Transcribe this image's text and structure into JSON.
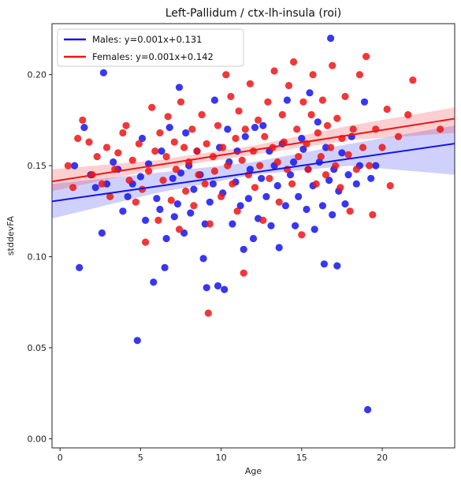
{
  "chart_data": {
    "type": "scatter",
    "title": "Left-Pallidum / ctx-lh-insula (roi)",
    "xlabel": "Age",
    "ylabel": "stddevFA",
    "xlim": [
      -0.5,
      24.5
    ],
    "ylim": [
      -0.005,
      0.228
    ],
    "xticks": [
      0,
      5,
      10,
      15,
      20
    ],
    "yticks": [
      0.0,
      0.05,
      0.1,
      0.15,
      0.2
    ],
    "ytick_labels": [
      "0.00",
      "0.05",
      "0.10",
      "0.15",
      "0.20"
    ],
    "grid": false,
    "legend_position": "top-left",
    "series": [
      {
        "name": "Males: y=0.001x+0.131",
        "color": "#1414ee",
        "regression": {
          "slope": 0.00127,
          "intercept": 0.131,
          "x_range": [
            -0.5,
            24.5
          ]
        },
        "ci_band": {
          "x": [
            -0.5,
            6,
            12,
            18,
            24.5
          ],
          "lower": [
            0.121,
            0.135,
            0.145,
            0.15,
            0.145
          ],
          "upper": [
            0.14,
            0.146,
            0.152,
            0.162,
            0.172
          ]
        },
        "points": [
          [
            0.9,
            0.15
          ],
          [
            1.2,
            0.094
          ],
          [
            1.5,
            0.171
          ],
          [
            1.9,
            0.145
          ],
          [
            2.2,
            0.138
          ],
          [
            2.6,
            0.113
          ],
          [
            2.7,
            0.201
          ],
          [
            2.9,
            0.14
          ],
          [
            3.3,
            0.152
          ],
          [
            3.6,
            0.148
          ],
          [
            3.9,
            0.125
          ],
          [
            4.2,
            0.133
          ],
          [
            4.5,
            0.14
          ],
          [
            4.8,
            0.054
          ],
          [
            5.0,
            0.144
          ],
          [
            5.1,
            0.165
          ],
          [
            5.3,
            0.12
          ],
          [
            5.5,
            0.151
          ],
          [
            5.8,
            0.086
          ],
          [
            6.0,
            0.132
          ],
          [
            6.2,
            0.126
          ],
          [
            6.3,
            0.158
          ],
          [
            6.5,
            0.094
          ],
          [
            6.6,
            0.11
          ],
          [
            6.8,
            0.171
          ],
          [
            7.0,
            0.143
          ],
          [
            7.1,
            0.122
          ],
          [
            7.3,
            0.129
          ],
          [
            7.4,
            0.193
          ],
          [
            7.5,
            0.146
          ],
          [
            7.7,
            0.113
          ],
          [
            7.8,
            0.168
          ],
          [
            8.0,
            0.15
          ],
          [
            8.1,
            0.124
          ],
          [
            8.3,
            0.137
          ],
          [
            8.5,
            0.158
          ],
          [
            8.7,
            0.145
          ],
          [
            8.9,
            0.099
          ],
          [
            9.0,
            0.118
          ],
          [
            9.1,
            0.083
          ],
          [
            9.3,
            0.13
          ],
          [
            9.5,
            0.14
          ],
          [
            9.6,
            0.186
          ],
          [
            9.8,
            0.084
          ],
          [
            9.9,
            0.16
          ],
          [
            10.1,
            0.135
          ],
          [
            10.2,
            0.082
          ],
          [
            10.4,
            0.17
          ],
          [
            10.5,
            0.152
          ],
          [
            10.7,
            0.118
          ],
          [
            10.9,
            0.141
          ],
          [
            11.0,
            0.158
          ],
          [
            11.2,
            0.128
          ],
          [
            11.4,
            0.104
          ],
          [
            11.5,
            0.166
          ],
          [
            11.7,
            0.132
          ],
          [
            11.8,
            0.148
          ],
          [
            12.0,
            0.11
          ],
          [
            12.1,
            0.171
          ],
          [
            12.3,
            0.121
          ],
          [
            12.5,
            0.143
          ],
          [
            12.6,
            0.172
          ],
          [
            12.8,
            0.133
          ],
          [
            13.0,
            0.158
          ],
          [
            13.1,
            0.117
          ],
          [
            13.3,
            0.15
          ],
          [
            13.5,
            0.139
          ],
          [
            13.6,
            0.105
          ],
          [
            13.8,
            0.162
          ],
          [
            14.0,
            0.128
          ],
          [
            14.1,
            0.186
          ],
          [
            14.3,
            0.145
          ],
          [
            14.5,
            0.152
          ],
          [
            14.6,
            0.117
          ],
          [
            14.8,
            0.133
          ],
          [
            15.0,
            0.165
          ],
          [
            15.1,
            0.159
          ],
          [
            15.3,
            0.126
          ],
          [
            15.4,
            0.148
          ],
          [
            15.5,
            0.19
          ],
          [
            15.7,
            0.139
          ],
          [
            15.8,
            0.115
          ],
          [
            16.0,
            0.174
          ],
          [
            16.1,
            0.152
          ],
          [
            16.3,
            0.128
          ],
          [
            16.4,
            0.096
          ],
          [
            16.5,
            0.16
          ],
          [
            16.7,
            0.142
          ],
          [
            16.8,
            0.22
          ],
          [
            16.9,
            0.123
          ],
          [
            17.0,
            0.148
          ],
          [
            17.2,
            0.095
          ],
          [
            17.3,
            0.136
          ],
          [
            17.5,
            0.157
          ],
          [
            17.7,
            0.129
          ],
          [
            17.9,
            0.145
          ],
          [
            18.1,
            0.166
          ],
          [
            18.4,
            0.14
          ],
          [
            18.6,
            0.15
          ],
          [
            18.9,
            0.185
          ],
          [
            19.1,
            0.016
          ],
          [
            19.3,
            0.143
          ],
          [
            19.6,
            0.15
          ]
        ]
      },
      {
        "name": "Females: y=0.001x+0.142",
        "color": "#ee1414",
        "regression": {
          "slope": 0.00138,
          "intercept": 0.142,
          "x_range": [
            -0.5,
            24.5
          ]
        },
        "ci_band": {
          "x": [
            -0.5,
            6,
            12,
            18,
            24.5
          ],
          "lower": [
            0.136,
            0.148,
            0.156,
            0.164,
            0.168
          ],
          "upper": [
            0.148,
            0.153,
            0.161,
            0.172,
            0.182
          ]
        },
        "points": [
          [
            0.5,
            0.15
          ],
          [
            0.8,
            0.138
          ],
          [
            1.1,
            0.165
          ],
          [
            1.4,
            0.175
          ],
          [
            1.8,
            0.163
          ],
          [
            2.0,
            0.145
          ],
          [
            2.3,
            0.155
          ],
          [
            2.6,
            0.14
          ],
          [
            2.9,
            0.16
          ],
          [
            3.1,
            0.133
          ],
          [
            3.4,
            0.148
          ],
          [
            3.6,
            0.157
          ],
          [
            3.9,
            0.168
          ],
          [
            4.1,
            0.172
          ],
          [
            4.3,
            0.142
          ],
          [
            4.5,
            0.153
          ],
          [
            4.7,
            0.13
          ],
          [
            4.9,
            0.162
          ],
          [
            5.1,
            0.137
          ],
          [
            5.3,
            0.108
          ],
          [
            5.5,
            0.147
          ],
          [
            5.7,
            0.182
          ],
          [
            5.9,
            0.158
          ],
          [
            6.1,
            0.12
          ],
          [
            6.2,
            0.168
          ],
          [
            6.4,
            0.142
          ],
          [
            6.6,
            0.155
          ],
          [
            6.7,
            0.177
          ],
          [
            6.9,
            0.131
          ],
          [
            7.1,
            0.163
          ],
          [
            7.2,
            0.148
          ],
          [
            7.4,
            0.115
          ],
          [
            7.5,
            0.185
          ],
          [
            7.7,
            0.16
          ],
          [
            7.8,
            0.136
          ],
          [
            8.0,
            0.152
          ],
          [
            8.2,
            0.17
          ],
          [
            8.3,
            0.128
          ],
          [
            8.5,
            0.158
          ],
          [
            8.6,
            0.145
          ],
          [
            8.8,
            0.178
          ],
          [
            9.0,
            0.14
          ],
          [
            9.1,
            0.162
          ],
          [
            9.2,
            0.069
          ],
          [
            9.3,
            0.118
          ],
          [
            9.5,
            0.155
          ],
          [
            9.6,
            0.147
          ],
          [
            9.8,
            0.172
          ],
          [
            10.0,
            0.133
          ],
          [
            10.1,
            0.16
          ],
          [
            10.3,
            0.2
          ],
          [
            10.4,
            0.15
          ],
          [
            10.6,
            0.188
          ],
          [
            10.7,
            0.14
          ],
          [
            10.9,
            0.165
          ],
          [
            11.0,
            0.125
          ],
          [
            11.1,
            0.18
          ],
          [
            11.3,
            0.153
          ],
          [
            11.4,
            0.091
          ],
          [
            11.5,
            0.17
          ],
          [
            11.7,
            0.145
          ],
          [
            11.8,
            0.195
          ],
          [
            12.0,
            0.158
          ],
          [
            12.1,
            0.138
          ],
          [
            12.3,
            0.175
          ],
          [
            12.4,
            0.15
          ],
          [
            12.6,
            0.12
          ],
          [
            12.7,
            0.166
          ],
          [
            12.9,
            0.185
          ],
          [
            13.0,
            0.143
          ],
          [
            13.2,
            0.16
          ],
          [
            13.3,
            0.202
          ],
          [
            13.5,
            0.152
          ],
          [
            13.6,
            0.13
          ],
          [
            13.8,
            0.178
          ],
          [
            13.9,
            0.163
          ],
          [
            14.1,
            0.148
          ],
          [
            14.2,
            0.194
          ],
          [
            14.4,
            0.14
          ],
          [
            14.5,
            0.207
          ],
          [
            14.7,
            0.17
          ],
          [
            14.8,
            0.155
          ],
          [
            15.0,
            0.112
          ],
          [
            15.1,
            0.185
          ],
          [
            15.3,
            0.162
          ],
          [
            15.4,
            0.148
          ],
          [
            15.6,
            0.178
          ],
          [
            15.7,
            0.2
          ],
          [
            15.9,
            0.14
          ],
          [
            16.0,
            0.168
          ],
          [
            16.2,
            0.155
          ],
          [
            16.3,
            0.186
          ],
          [
            16.5,
            0.145
          ],
          [
            16.6,
            0.172
          ],
          [
            16.8,
            0.16
          ],
          [
            16.9,
            0.205
          ],
          [
            17.1,
            0.15
          ],
          [
            17.2,
            0.176
          ],
          [
            17.4,
            0.138
          ],
          [
            17.5,
            0.165
          ],
          [
            17.7,
            0.188
          ],
          [
            17.9,
            0.156
          ],
          [
            18.0,
            0.125
          ],
          [
            18.2,
            0.17
          ],
          [
            18.4,
            0.148
          ],
          [
            18.6,
            0.2
          ],
          [
            18.8,
            0.16
          ],
          [
            19.0,
            0.21
          ],
          [
            19.2,
            0.15
          ],
          [
            19.4,
            0.123
          ],
          [
            19.6,
            0.17
          ],
          [
            20.0,
            0.16
          ],
          [
            20.3,
            0.181
          ],
          [
            20.5,
            0.139
          ],
          [
            21.0,
            0.166
          ],
          [
            21.6,
            0.178
          ],
          [
            21.9,
            0.197
          ],
          [
            23.6,
            0.17
          ]
        ]
      }
    ]
  }
}
